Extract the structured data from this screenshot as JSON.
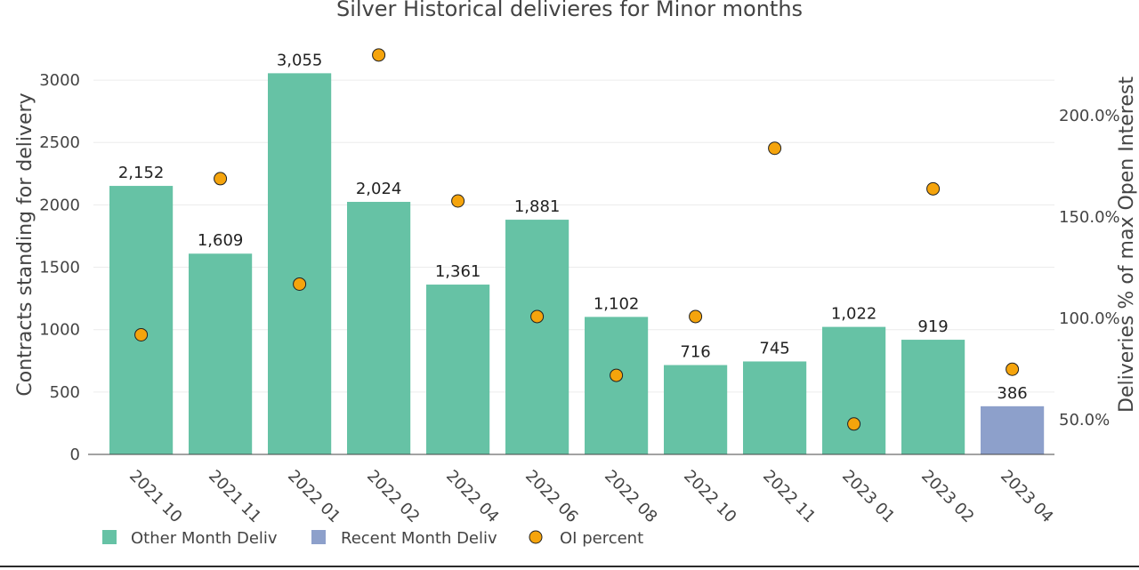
{
  "chart_data": {
    "type": "bar",
    "title": "Silver Historical delivieres for Minor months",
    "ylabel": "Contracts standing for delivery",
    "y2label": "Deliveries % of max Open Interest",
    "ylim": [
      0,
      3250
    ],
    "y2lim": [
      33.0,
      233.0
    ],
    "yticks": [
      0,
      500,
      1000,
      1500,
      2000,
      2500,
      3000
    ],
    "y2ticks": [
      50,
      100,
      150,
      200
    ],
    "y2ticklabels": [
      "50.0%",
      "100.0%",
      "150.0%",
      "200.0%"
    ],
    "grid": true,
    "legend_position": "bottom",
    "categories": [
      "2021 10",
      "2021 11",
      "2022 01",
      "2022 02",
      "2022 04",
      "2022 06",
      "2022 08",
      "2022 10",
      "2022 11",
      "2023 01",
      "2023 02",
      "2023 04"
    ],
    "series": [
      {
        "name": "Other Month Deliv",
        "kind": "bar",
        "color": "#66c2a5",
        "values": [
          2152,
          1609,
          3055,
          2024,
          1361,
          1881,
          1102,
          716,
          745,
          1022,
          919,
          null
        ],
        "labels": [
          "2,152",
          "1,609",
          "3,055",
          "2,024",
          "1,361",
          "1,881",
          "1,102",
          "716",
          "745",
          "1,022",
          "919",
          ""
        ]
      },
      {
        "name": "Recent Month Deliv",
        "kind": "bar",
        "color": "#8da0cb",
        "values": [
          null,
          null,
          null,
          null,
          null,
          null,
          null,
          null,
          null,
          null,
          null,
          386
        ],
        "labels": [
          "",
          "",
          "",
          "",
          "",
          "",
          "",
          "",
          "",
          "",
          "",
          "386"
        ]
      },
      {
        "name": "OI percent",
        "kind": "scatter",
        "axis": "y2",
        "color": "#f5a40c",
        "values": [
          92,
          169,
          117,
          230,
          158,
          101,
          72,
          101,
          184,
          48,
          164,
          75
        ]
      }
    ]
  }
}
